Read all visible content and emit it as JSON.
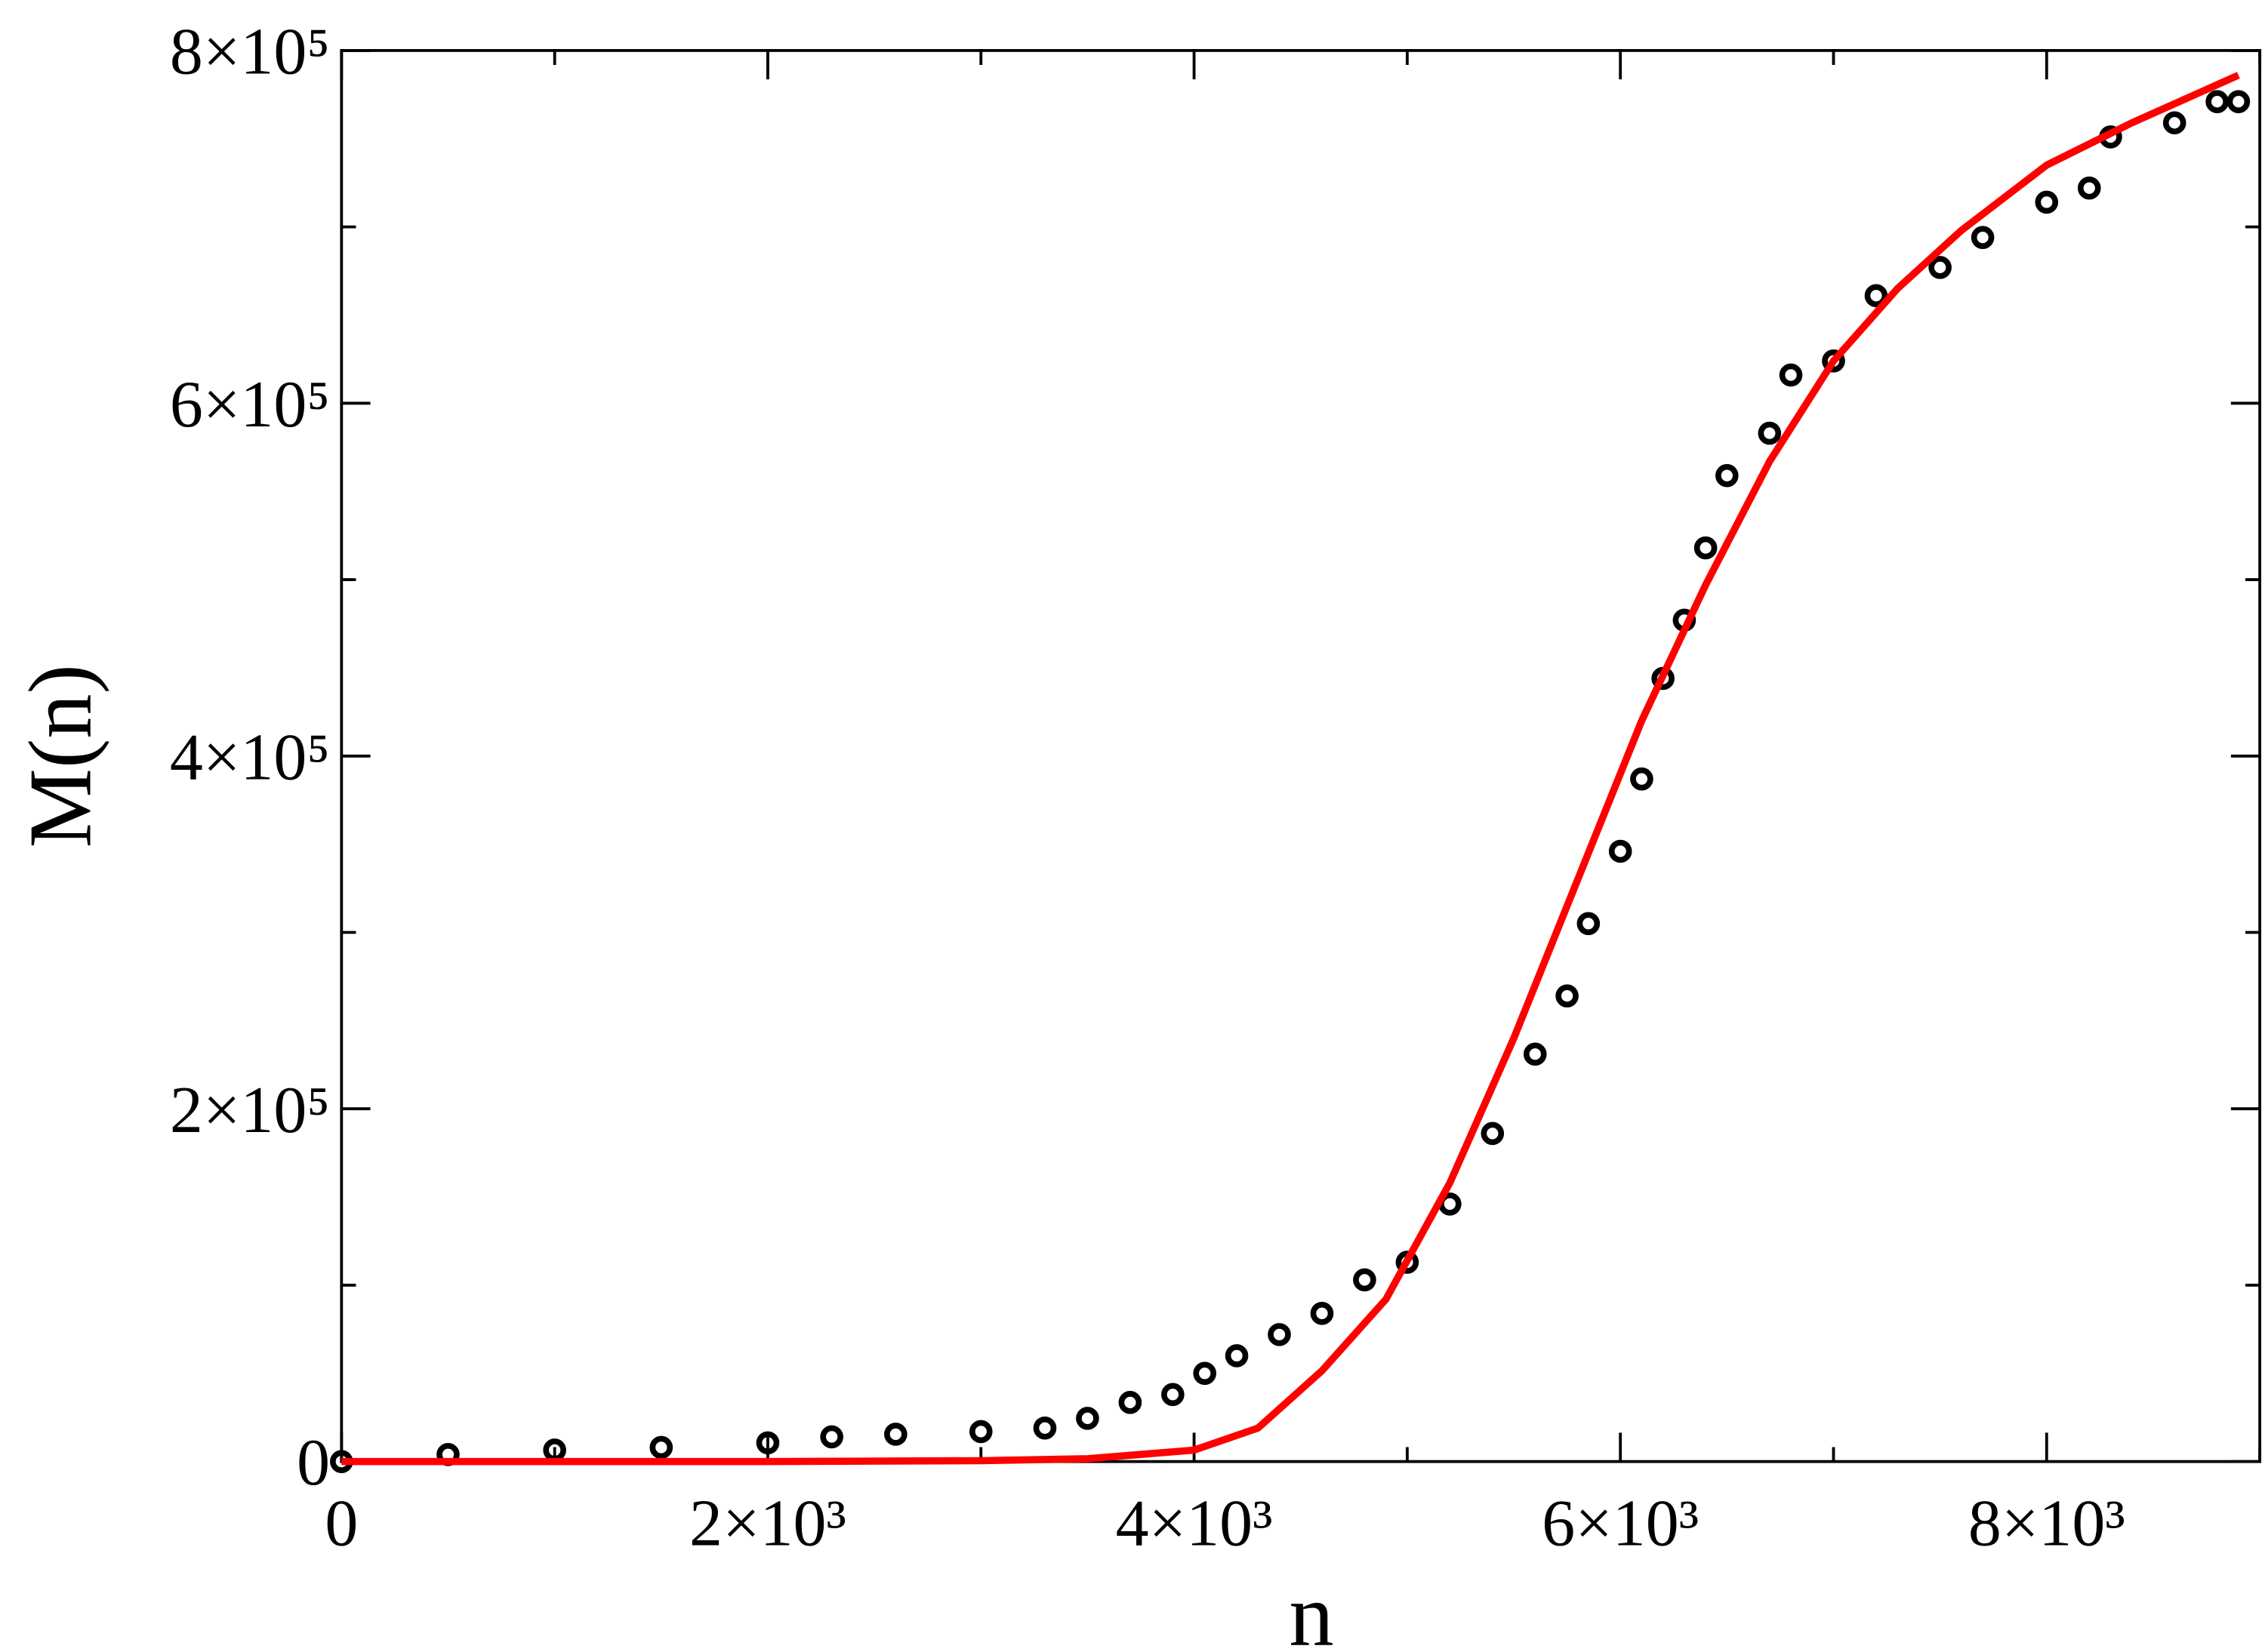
{
  "chart_data": {
    "type": "scatter",
    "x_label": "n",
    "y_label": "M(n)",
    "xlim": [
      0,
      9000
    ],
    "ylim": [
      0,
      800000
    ],
    "xticks": [
      0,
      {
        "value": 2000,
        "label": "2×10³"
      },
      {
        "value": 4000,
        "label": "4×10³"
      },
      {
        "value": 6000,
        "label": "6×10³"
      },
      {
        "value": 8000,
        "label": "8×10³"
      }
    ],
    "x_minor_ticks": [
      1000,
      3000,
      5000,
      7000,
      9000
    ],
    "yticks": [
      0,
      {
        "value": 200000,
        "label": "2×10⁵"
      },
      {
        "value": 400000,
        "label": "4×10⁵"
      },
      {
        "value": 600000,
        "label": "6×10⁵"
      },
      {
        "value": 800000,
        "label": "8×10⁵"
      }
    ],
    "y_minor_ticks": [
      100000,
      300000,
      500000,
      700000
    ],
    "series": [
      {
        "style": "markers",
        "color": "#000000",
        "x": [
          0,
          500,
          1000,
          1500,
          2000,
          2300,
          2600,
          3000,
          3300,
          3500,
          3700,
          3900,
          4050,
          4200,
          4400,
          4600,
          4800,
          5000,
          5200,
          5400,
          5600,
          5750,
          5850,
          6000,
          6100,
          6200,
          6300,
          6400,
          6500,
          6700,
          6800,
          7000,
          7200,
          7500,
          7700,
          8000,
          8200,
          8300,
          8600,
          8800,
          8900
        ],
        "values": [
          0,
          4000,
          6500,
          8000,
          10600,
          14000,
          15500,
          17000,
          19000,
          24500,
          33500,
          38000,
          50000,
          60000,
          72000,
          84000,
          103000,
          113000,
          146000,
          186000,
          231000,
          264000,
          305000,
          346000,
          387000,
          444000,
          477000,
          518000,
          559000,
          583000,
          616000,
          624000,
          661000,
          677000,
          694000,
          714000,
          722000,
          751000,
          759000,
          771000,
          771000
        ]
      },
      {
        "style": "line",
        "color": "#ff0000",
        "x": [
          0,
          1000,
          2000,
          3000,
          3500,
          4000,
          4300,
          4600,
          4900,
          5200,
          5500,
          5800,
          6100,
          6400,
          6700,
          7000,
          7300,
          7600,
          8000,
          8400,
          8900
        ],
        "values": [
          0,
          0,
          0,
          500,
          1600,
          6500,
          19000,
          51500,
          92000,
          158000,
          240000,
          330000,
          420000,
          497000,
          567000,
          624000,
          665000,
          698000,
          735000,
          759000,
          786000
        ]
      }
    ]
  }
}
